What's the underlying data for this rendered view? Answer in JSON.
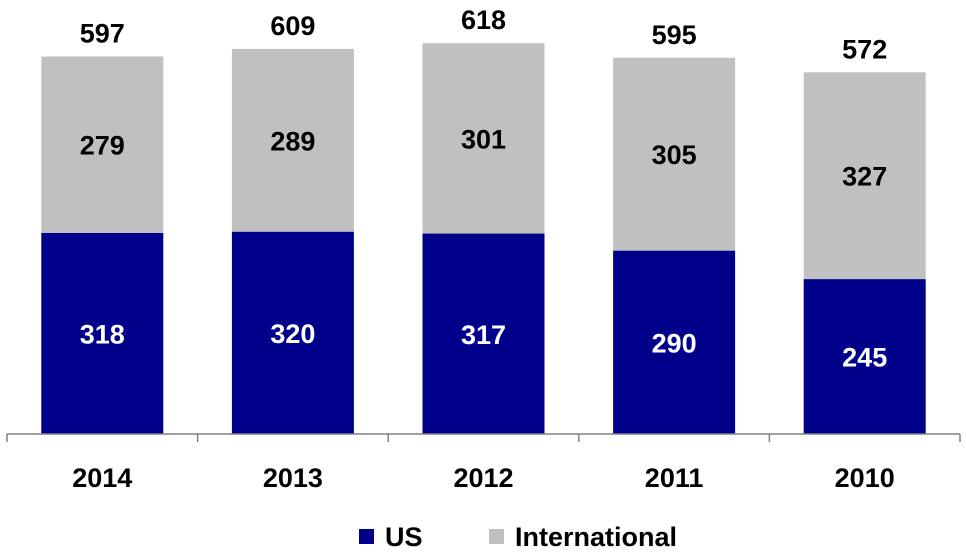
{
  "chart_data": {
    "type": "bar",
    "stacked": true,
    "categories": [
      "2014",
      "2013",
      "2012",
      "2011",
      "2010"
    ],
    "series": [
      {
        "name": "US",
        "values": [
          318,
          320,
          317,
          290,
          245
        ],
        "color": "#00008B",
        "label_color": "#FFFFFF"
      },
      {
        "name": "International",
        "values": [
          279,
          289,
          301,
          305,
          327
        ],
        "color": "#C0C0C0",
        "label_color": "#000000"
      }
    ],
    "totals": [
      597,
      609,
      618,
      595,
      572
    ],
    "title": "",
    "xlabel": "",
    "ylabel": "",
    "ylim": [
      0,
      640
    ],
    "grid": false,
    "legend": {
      "position": "bottom-center"
    }
  }
}
